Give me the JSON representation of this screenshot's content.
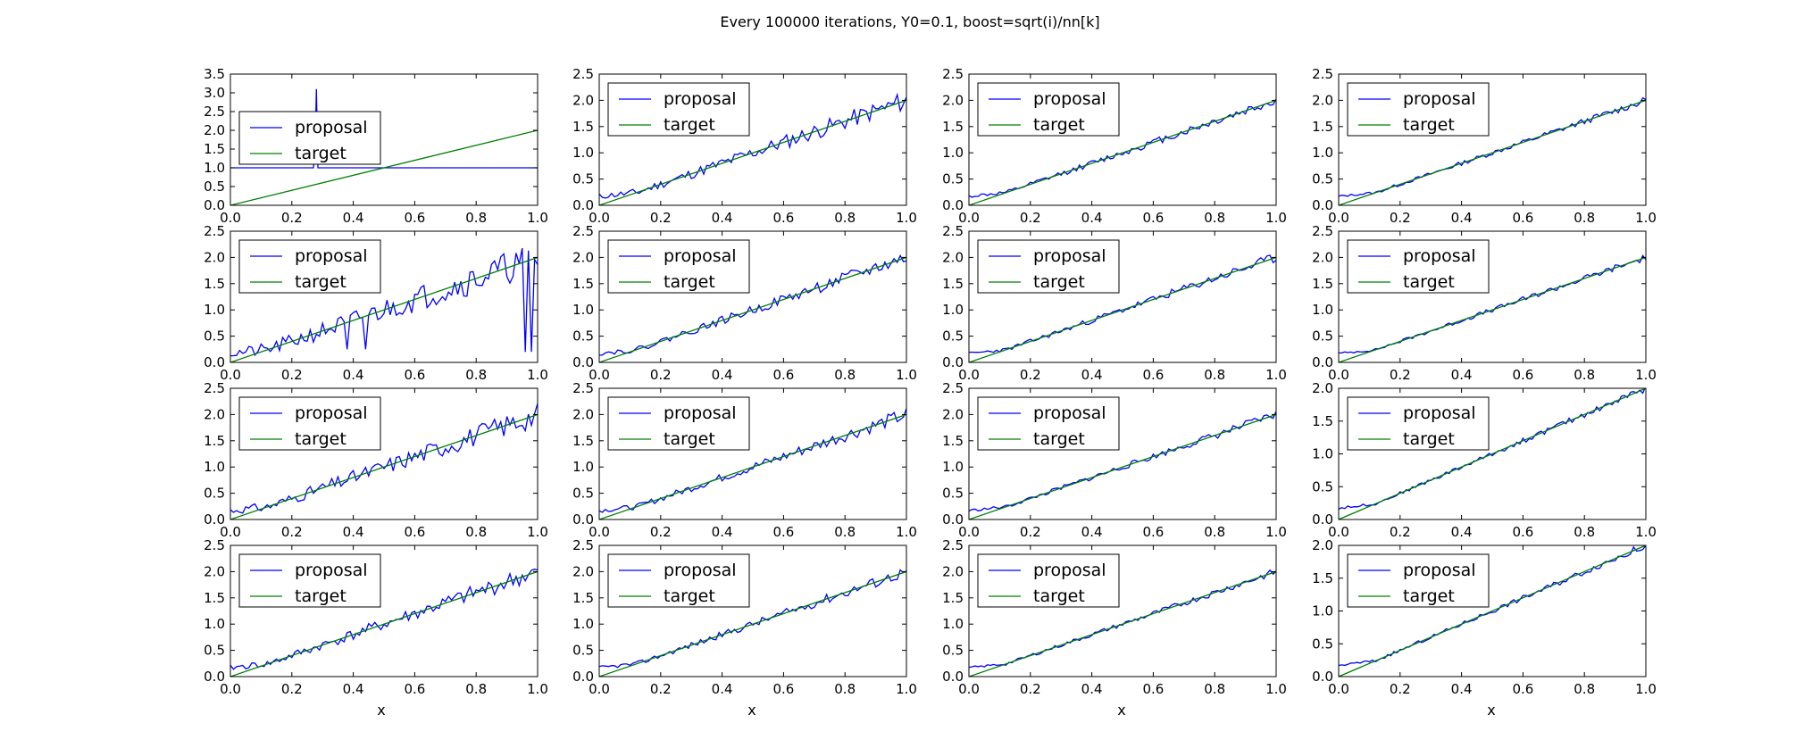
{
  "figure": {
    "title": "Every 100000 iterations, Y0=0.1, boost=sqrt(i)/nn[k]",
    "xlabel": "x"
  },
  "style": {
    "proposal_color": "#0000ff",
    "target_color": "#008000"
  },
  "chart_data": [
    {
      "type": "line",
      "row": 0,
      "col": 0,
      "title": "",
      "xlabel": "",
      "ylabel": "",
      "xlim": [
        0,
        1
      ],
      "ylim": [
        0,
        3.5
      ],
      "grid": false,
      "legend": "upper-left",
      "xticks": [
        "0.0",
        "0.2",
        "0.4",
        "0.6",
        "0.8",
        "1.0"
      ],
      "yticks": [
        "0.0",
        "0.5",
        "1.0",
        "1.5",
        "2.0",
        "2.5",
        "3.0",
        "3.5"
      ],
      "series": [
        {
          "name": "proposal",
          "x": [
            0,
            0.27,
            0.275,
            0.28,
            0.285,
            1
          ],
          "y": [
            1.0,
            1.0,
            1.3,
            3.1,
            1.0,
            1.0
          ]
        },
        {
          "name": "target",
          "x": [
            0,
            1
          ],
          "y": [
            0,
            2
          ]
        }
      ]
    },
    {
      "type": "line",
      "row": 0,
      "col": 1,
      "xlim": [
        0,
        1
      ],
      "ylim": [
        0,
        2.5
      ],
      "grid": false,
      "legend": "upper-left",
      "xticks": [
        "0.0",
        "0.2",
        "0.4",
        "0.6",
        "0.8",
        "1.0"
      ],
      "yticks": [
        "0.0",
        "0.5",
        "1.0",
        "1.5",
        "2.0",
        "2.5"
      ],
      "series": [
        {
          "name": "proposal",
          "noise": 0.14,
          "seed": 11
        },
        {
          "name": "target",
          "x": [
            0,
            1
          ],
          "y": [
            0,
            2
          ]
        }
      ]
    },
    {
      "type": "line",
      "row": 0,
      "col": 2,
      "xlim": [
        0,
        1
      ],
      "ylim": [
        0,
        2.5
      ],
      "grid": false,
      "legend": "upper-left",
      "xticks": [
        "0.0",
        "0.2",
        "0.4",
        "0.6",
        "0.8",
        "1.0"
      ],
      "yticks": [
        "0.0",
        "0.5",
        "1.0",
        "1.5",
        "2.0",
        "2.5"
      ],
      "series": [
        {
          "name": "proposal",
          "noise": 0.07,
          "seed": 12
        },
        {
          "name": "target",
          "x": [
            0,
            1
          ],
          "y": [
            0,
            2
          ]
        }
      ]
    },
    {
      "type": "line",
      "row": 0,
      "col": 3,
      "xlim": [
        0,
        1
      ],
      "ylim": [
        0,
        2.5
      ],
      "grid": false,
      "legend": "upper-left",
      "xticks": [
        "0.0",
        "0.2",
        "0.4",
        "0.6",
        "0.8",
        "1.0"
      ],
      "yticks": [
        "0.0",
        "0.5",
        "1.0",
        "1.5",
        "2.0",
        "2.5"
      ],
      "series": [
        {
          "name": "proposal",
          "noise": 0.05,
          "seed": 13
        },
        {
          "name": "target",
          "x": [
            0,
            1
          ],
          "y": [
            0,
            2
          ]
        }
      ]
    },
    {
      "type": "line",
      "row": 1,
      "col": 0,
      "xlim": [
        0,
        1
      ],
      "ylim": [
        0,
        2.5
      ],
      "grid": false,
      "legend": "upper-left",
      "xticks": [
        "0.0",
        "0.2",
        "0.4",
        "0.6",
        "0.8",
        "1.0"
      ],
      "yticks": [
        "0.0",
        "0.5",
        "1.0",
        "1.5",
        "2.0",
        "2.5"
      ],
      "series": [
        {
          "name": "proposal",
          "noise": 0.24,
          "seed": 21,
          "spikes": [
            [
              0.38,
              0.25
            ],
            [
              0.44,
              0.25
            ],
            [
              0.96,
              0.2
            ],
            [
              0.98,
              0.2
            ]
          ]
        },
        {
          "name": "target",
          "x": [
            0,
            1
          ],
          "y": [
            0,
            2
          ]
        }
      ]
    },
    {
      "type": "line",
      "row": 1,
      "col": 1,
      "xlim": [
        0,
        1
      ],
      "ylim": [
        0,
        2.5
      ],
      "grid": false,
      "legend": "upper-left",
      "xticks": [
        "0.0",
        "0.2",
        "0.4",
        "0.6",
        "0.8",
        "1.0"
      ],
      "yticks": [
        "0.0",
        "0.5",
        "1.0",
        "1.5",
        "2.0",
        "2.5"
      ],
      "series": [
        {
          "name": "proposal",
          "noise": 0.1,
          "seed": 22
        },
        {
          "name": "target",
          "x": [
            0,
            1
          ],
          "y": [
            0,
            2
          ]
        }
      ]
    },
    {
      "type": "line",
      "row": 1,
      "col": 2,
      "xlim": [
        0,
        1
      ],
      "ylim": [
        0,
        2.5
      ],
      "grid": false,
      "legend": "upper-left",
      "xticks": [
        "0.0",
        "0.2",
        "0.4",
        "0.6",
        "0.8",
        "1.0"
      ],
      "yticks": [
        "0.0",
        "0.5",
        "1.0",
        "1.5",
        "2.0",
        "2.5"
      ],
      "series": [
        {
          "name": "proposal",
          "noise": 0.07,
          "seed": 23
        },
        {
          "name": "target",
          "x": [
            0,
            1
          ],
          "y": [
            0,
            2
          ]
        }
      ]
    },
    {
      "type": "line",
      "row": 1,
      "col": 3,
      "xlim": [
        0,
        1
      ],
      "ylim": [
        0,
        2.5
      ],
      "grid": false,
      "legend": "upper-left",
      "xticks": [
        "0.0",
        "0.2",
        "0.4",
        "0.6",
        "0.8",
        "1.0"
      ],
      "yticks": [
        "0.0",
        "0.5",
        "1.0",
        "1.5",
        "2.0",
        "2.5"
      ],
      "series": [
        {
          "name": "proposal",
          "noise": 0.05,
          "seed": 24
        },
        {
          "name": "target",
          "x": [
            0,
            1
          ],
          "y": [
            0,
            2
          ]
        }
      ]
    },
    {
      "type": "line",
      "row": 2,
      "col": 0,
      "xlim": [
        0,
        1
      ],
      "ylim": [
        0,
        2.5
      ],
      "grid": false,
      "legend": "upper-left",
      "xticks": [
        "0.0",
        "0.2",
        "0.4",
        "0.6",
        "0.8",
        "1.0"
      ],
      "yticks": [
        "0.0",
        "0.5",
        "1.0",
        "1.5",
        "2.0",
        "2.5"
      ],
      "series": [
        {
          "name": "proposal",
          "noise": 0.17,
          "seed": 31
        },
        {
          "name": "target",
          "x": [
            0,
            1
          ],
          "y": [
            0,
            2
          ]
        }
      ]
    },
    {
      "type": "line",
      "row": 2,
      "col": 1,
      "xlim": [
        0,
        1
      ],
      "ylim": [
        0,
        2.5
      ],
      "grid": false,
      "legend": "upper-left",
      "xticks": [
        "0.0",
        "0.2",
        "0.4",
        "0.6",
        "0.8",
        "1.0"
      ],
      "yticks": [
        "0.0",
        "0.5",
        "1.0",
        "1.5",
        "2.0",
        "2.5"
      ],
      "series": [
        {
          "name": "proposal",
          "noise": 0.1,
          "seed": 32
        },
        {
          "name": "target",
          "x": [
            0,
            1
          ],
          "y": [
            0,
            2
          ]
        }
      ]
    },
    {
      "type": "line",
      "row": 2,
      "col": 2,
      "xlim": [
        0,
        1
      ],
      "ylim": [
        0,
        2.5
      ],
      "grid": false,
      "legend": "upper-left",
      "xticks": [
        "0.0",
        "0.2",
        "0.4",
        "0.6",
        "0.8",
        "1.0"
      ],
      "yticks": [
        "0.0",
        "0.5",
        "1.0",
        "1.5",
        "2.0",
        "2.5"
      ],
      "series": [
        {
          "name": "proposal",
          "noise": 0.06,
          "seed": 33
        },
        {
          "name": "target",
          "x": [
            0,
            1
          ],
          "y": [
            0,
            2
          ]
        }
      ]
    },
    {
      "type": "line",
      "row": 2,
      "col": 3,
      "xlim": [
        0,
        1
      ],
      "ylim": [
        0,
        2.0
      ],
      "grid": false,
      "legend": "upper-left",
      "xticks": [
        "0.0",
        "0.2",
        "0.4",
        "0.6",
        "0.8",
        "1.0"
      ],
      "yticks": [
        "0.0",
        "0.5",
        "1.0",
        "1.5",
        "2.0"
      ],
      "series": [
        {
          "name": "proposal",
          "noise": 0.04,
          "seed": 34
        },
        {
          "name": "target",
          "x": [
            0,
            1
          ],
          "y": [
            0,
            2
          ]
        }
      ]
    },
    {
      "type": "line",
      "row": 3,
      "col": 0,
      "xlim": [
        0,
        1
      ],
      "ylim": [
        0,
        2.5
      ],
      "grid": false,
      "legend": "upper-left",
      "xticks": [
        "0.0",
        "0.2",
        "0.4",
        "0.6",
        "0.8",
        "1.0"
      ],
      "yticks": [
        "0.0",
        "0.5",
        "1.0",
        "1.5",
        "2.0",
        "2.5"
      ],
      "series": [
        {
          "name": "proposal",
          "noise": 0.13,
          "seed": 41
        },
        {
          "name": "target",
          "x": [
            0,
            1
          ],
          "y": [
            0,
            2
          ]
        }
      ]
    },
    {
      "type": "line",
      "row": 3,
      "col": 1,
      "xlim": [
        0,
        1
      ],
      "ylim": [
        0,
        2.5
      ],
      "grid": false,
      "legend": "upper-left",
      "xticks": [
        "0.0",
        "0.2",
        "0.4",
        "0.6",
        "0.8",
        "1.0"
      ],
      "yticks": [
        "0.0",
        "0.5",
        "1.0",
        "1.5",
        "2.0",
        "2.5"
      ],
      "series": [
        {
          "name": "proposal",
          "noise": 0.08,
          "seed": 42
        },
        {
          "name": "target",
          "x": [
            0,
            1
          ],
          "y": [
            0,
            2
          ]
        }
      ]
    },
    {
      "type": "line",
      "row": 3,
      "col": 2,
      "xlim": [
        0,
        1
      ],
      "ylim": [
        0,
        2.5
      ],
      "grid": false,
      "legend": "upper-left",
      "xticks": [
        "0.0",
        "0.2",
        "0.4",
        "0.6",
        "0.8",
        "1.0"
      ],
      "yticks": [
        "0.0",
        "0.5",
        "1.0",
        "1.5",
        "2.0",
        "2.5"
      ],
      "series": [
        {
          "name": "proposal",
          "noise": 0.05,
          "seed": 43
        },
        {
          "name": "target",
          "x": [
            0,
            1
          ],
          "y": [
            0,
            2
          ]
        }
      ]
    },
    {
      "type": "line",
      "row": 3,
      "col": 3,
      "xlim": [
        0,
        1
      ],
      "ylim": [
        0,
        2.0
      ],
      "grid": false,
      "legend": "upper-left",
      "xticks": [
        "0.0",
        "0.2",
        "0.4",
        "0.6",
        "0.8",
        "1.0"
      ],
      "yticks": [
        "0.0",
        "0.5",
        "1.0",
        "1.5",
        "2.0"
      ],
      "series": [
        {
          "name": "proposal",
          "noise": 0.04,
          "seed": 44
        },
        {
          "name": "target",
          "x": [
            0,
            1
          ],
          "y": [
            0,
            2
          ]
        }
      ]
    }
  ]
}
